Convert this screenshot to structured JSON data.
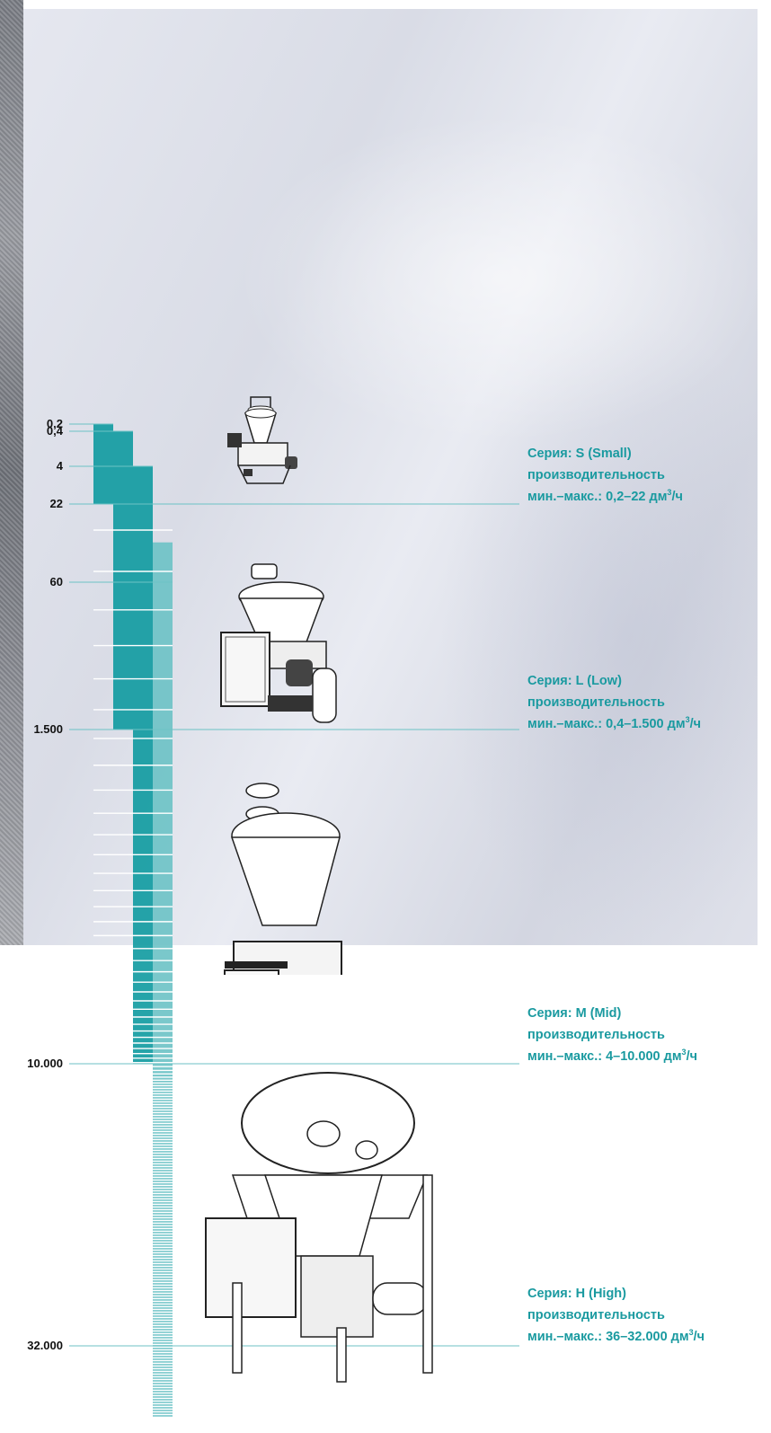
{
  "colors": {
    "bar_dark": "#0e9aa0",
    "bar_light": "#6cc2c5",
    "leader_line": "#6cc2c5",
    "text_accent": "#1a9aa0"
  },
  "chart_data": {
    "type": "bar",
    "orientation": "vertical-downward",
    "scale": "nonlinear",
    "y_axis": {
      "tick_labels": [
        "0,2",
        "0,4",
        "4",
        "22",
        "60",
        "1.500",
        "10.000",
        "32.000"
      ],
      "tick_values": [
        0.2,
        0.4,
        4,
        22,
        60,
        1500,
        10000,
        32000
      ],
      "unit": "дм³/ч"
    },
    "series": [
      {
        "name": "Серия: S (Small)",
        "min": 0.2,
        "max": 22
      },
      {
        "name": "Серия: L (Low)",
        "min": 0.4,
        "max": 1500
      },
      {
        "name": "Серия: M (Mid)",
        "min": 4,
        "max": 10000
      },
      {
        "name": "Серия: H (High)",
        "min": 36,
        "max": 32000
      }
    ],
    "legend_placement": "right"
  },
  "labels": [
    {
      "series": "Серия: S (Small)",
      "line2": "производительность",
      "line3_prefix": "мин.–макс.: 0,2–22 дм",
      "sup": "3",
      "suffix": "/ч"
    },
    {
      "series": "Серия: L (Low)",
      "line2": "производительность",
      "line3_prefix": "мин.–макс.: 0,4–1.500 дм",
      "sup": "3",
      "suffix": "/ч"
    },
    {
      "series": "Серия: M (Mid)",
      "line2": "производительность",
      "line3_prefix": "мин.–макс.: 4–10.000 дм",
      "sup": "3",
      "suffix": "/ч"
    },
    {
      "series": "Серия: H (High)",
      "line2": "производительность",
      "line3_prefix": "мин.–макс.: 36–32.000 дм",
      "sup": "3",
      "suffix": "/ч"
    }
  ]
}
